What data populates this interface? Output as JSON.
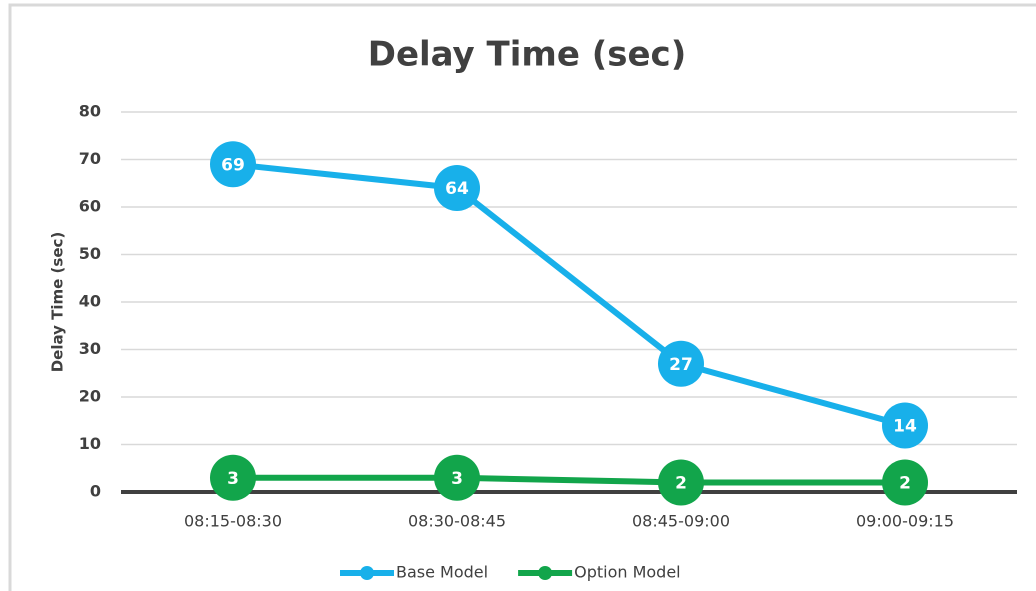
{
  "chart_data": {
    "type": "line",
    "title": "Delay Time (sec)",
    "y_label": "Delay Time (sec)",
    "categories": [
      "08:15-08:30",
      "08:30-08:45",
      "08:45-09:00",
      "09:00-09:15"
    ],
    "series": [
      {
        "name": "Base Model",
        "color": "#18b0ea",
        "values": [
          69,
          64,
          27,
          14
        ]
      },
      {
        "name": "Option Model",
        "color": "#12a54b",
        "values": [
          3,
          3,
          2,
          2
        ]
      }
    ],
    "ylim": [
      0,
      80
    ],
    "yticks": [
      0,
      10,
      20,
      30,
      40,
      50,
      60,
      70,
      80
    ],
    "grid": true,
    "legend": "bottom",
    "data_labels": true
  }
}
